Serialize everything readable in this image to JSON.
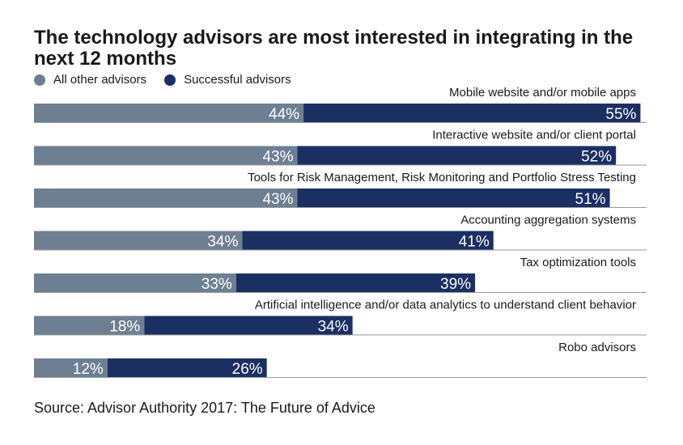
{
  "chart_data": {
    "type": "bar",
    "title": "The technology advisors are most interested in integrating in the next 12 months",
    "xlim": [
      0,
      100
    ],
    "legend_position": "top-left",
    "categories": [
      "Mobile website and/or mobile apps",
      "Interactive website and/or client portal",
      "Tools for Risk Management, Risk Monitoring and Portfolio Stress Testing",
      "Accounting aggregation systems",
      "Tax optimization tools",
      "Artificial intelligence and/or data analytics to understand client behavior",
      "Robo advisors"
    ],
    "series": [
      {
        "name": "All other advisors",
        "color": "#6e7f92",
        "values": [
          44,
          43,
          43,
          34,
          33,
          18,
          12
        ],
        "labels": [
          "44%",
          "43%",
          "43%",
          "34%",
          "33%",
          "18%",
          "12%"
        ]
      },
      {
        "name": "Successful advisors",
        "color": "#1b2f63",
        "values": [
          55,
          52,
          51,
          41,
          39,
          34,
          26
        ],
        "labels": [
          "55%",
          "52%",
          "51%",
          "41%",
          "39%",
          "34%",
          "26%"
        ]
      }
    ]
  },
  "source": "Source: Advisor Authority 2017: The Future of Advice"
}
